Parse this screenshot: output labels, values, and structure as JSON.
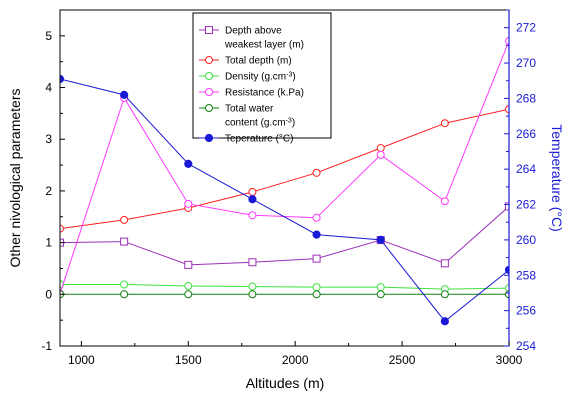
{
  "chart_data": {
    "type": "line",
    "xlabel": "Altitudes (m)",
    "ylabel": "Other nivological parameters",
    "y2label": "Temperature (°C)",
    "xlim": [
      900,
      3000
    ],
    "ylim": [
      -1,
      5.5
    ],
    "y2lim": [
      254,
      273
    ],
    "xticks": [
      1000,
      1500,
      2000,
      2500,
      3000
    ],
    "yticks": [
      -1,
      0,
      1,
      2,
      3,
      4,
      5
    ],
    "y2ticks": [
      254,
      256,
      258,
      260,
      262,
      264,
      266,
      268,
      270,
      272
    ],
    "grid": false,
    "legend_position": "top-center",
    "x": [
      900,
      1200,
      1500,
      1800,
      2100,
      2400,
      2700,
      3000
    ],
    "series": [
      {
        "name": "Depth above weakest layer (m)",
        "legend_lines": [
          "Depth above",
          "weakest layer (m)"
        ],
        "axis": "left",
        "color": "#9b30b8",
        "marker": "square-open",
        "values": [
          1.0,
          1.02,
          0.57,
          0.62,
          0.69,
          1.05,
          0.6,
          1.7
        ]
      },
      {
        "name": "Total depth (m)",
        "legend_lines": [
          "Total depth (m)"
        ],
        "axis": "left",
        "color": "#ff2020",
        "marker": "circle-open",
        "values": [
          1.27,
          1.44,
          1.67,
          1.98,
          2.35,
          2.83,
          3.31,
          3.58
        ]
      },
      {
        "name": "Density (g.cm⁻³)",
        "legend_lines": [
          "Density (g.cm⁻³)"
        ],
        "axis": "left",
        "color": "#40e040",
        "marker": "circle-open",
        "values": [
          0.19,
          0.19,
          0.16,
          0.15,
          0.14,
          0.14,
          0.1,
          0.12
        ]
      },
      {
        "name": "Resistance (k.Pa)",
        "legend_lines": [
          "Resistance (k.Pa)"
        ],
        "axis": "left",
        "color": "#ff38ff",
        "marker": "circle-open",
        "values": [
          0.01,
          3.8,
          1.75,
          1.53,
          1.48,
          2.7,
          1.8,
          4.9
        ]
      },
      {
        "name": "Total water content (g.cm⁻³)",
        "legend_lines": [
          "Total water",
          "content (g.cm⁻³)"
        ],
        "axis": "left",
        "color": "#108010",
        "marker": "circle-open",
        "values": [
          0.0,
          0.0,
          0.0,
          0.0,
          0.0,
          0.0,
          0.0,
          0.0
        ]
      },
      {
        "name": "Teperature (°C)",
        "legend_lines": [
          "Teperature (°C)"
        ],
        "axis": "right",
        "color": "#1a1ad6",
        "marker": "circle-filled",
        "values": [
          269.1,
          268.2,
          264.3,
          262.3,
          260.3,
          260.0,
          255.4,
          258.3
        ]
      }
    ]
  }
}
